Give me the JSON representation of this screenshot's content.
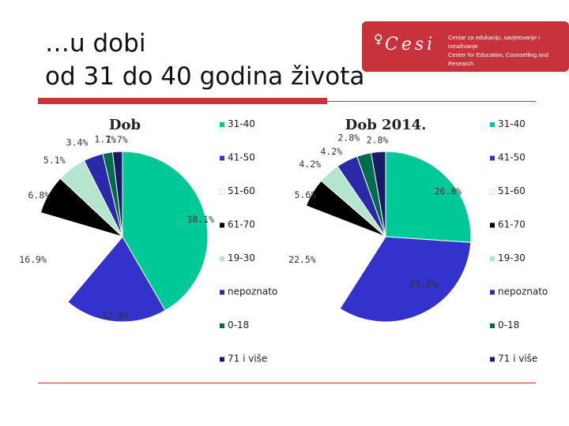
{
  "slide": {
    "title_line1": "…u dobi",
    "title_line2": "od 31 do 40 godina života",
    "logo": {
      "brand": "Cesi",
      "line1": "Centar za edukaciju, savjetovanje i istraživanje",
      "line2": "Center for Education, Counselling and Research",
      "color": "#c8323a"
    }
  },
  "chart_data": [
    {
      "type": "pie",
      "title": "Dob",
      "categories": [
        "31-40",
        "41-50",
        "51-60",
        "61-70",
        "19-30",
        "nepoznato",
        "0-18",
        "71 i više"
      ],
      "values": [
        38.1,
        17.8,
        16.9,
        6.8,
        5.1,
        3.4,
        1.7,
        1.7
      ],
      "data_labels": [
        "38.1%",
        "17.8%",
        "16.9%",
        "6.8%",
        "5.1%",
        "3.4%",
        "1.7%",
        "1.7%"
      ],
      "colors": [
        "#00c896",
        "#3333cc",
        "#ffffff",
        "#000000",
        "#b3e6cc",
        "#2a2aa8",
        "#006b4f",
        "#1a1a66"
      ],
      "legend_position": "right"
    },
    {
      "type": "pie",
      "title": "Dob 2014.",
      "categories": [
        "31-40",
        "41-50",
        "51-60",
        "61-70",
        "19-30",
        "nepoznato",
        "0-18",
        "71 i više"
      ],
      "values": [
        26.8,
        33.8,
        22.5,
        5.6,
        4.2,
        4.2,
        2.8,
        2.8
      ],
      "data_labels": [
        "26.8%",
        "33.8%",
        "22.5%",
        "5.6%",
        "4.2%",
        "4.2%",
        "2.8%",
        "2.8%"
      ],
      "colors": [
        "#00c896",
        "#3333cc",
        "#ffffff",
        "#000000",
        "#b3e6cc",
        "#2a2aa8",
        "#006b4f",
        "#1a1a66"
      ],
      "legend_position": "right"
    }
  ]
}
